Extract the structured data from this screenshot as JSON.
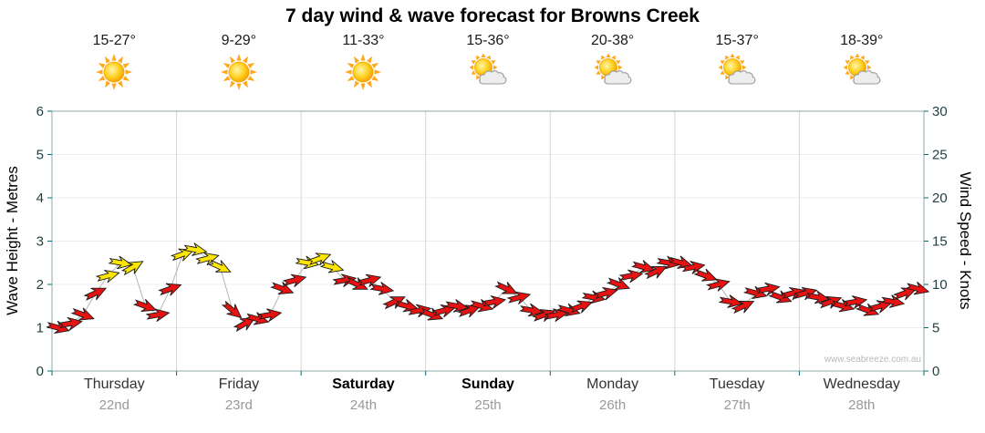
{
  "title": "7 day wind & wave forecast for Browns Creek",
  "watermark": "www.seabreeze.com.au",
  "days": [
    {
      "name": "Thursday",
      "date": "22nd",
      "temp": "15-27°",
      "icon": "sun",
      "weekend": false
    },
    {
      "name": "Friday",
      "date": "23rd",
      "temp": "9-29°",
      "icon": "sun",
      "weekend": false
    },
    {
      "name": "Saturday",
      "date": "24th",
      "temp": "11-33°",
      "icon": "sun",
      "weekend": true
    },
    {
      "name": "Sunday",
      "date": "25th",
      "temp": "15-36°",
      "icon": "sun-cloud",
      "weekend": true
    },
    {
      "name": "Monday",
      "date": "26th",
      "temp": "20-38°",
      "icon": "sun-cloud",
      "weekend": false
    },
    {
      "name": "Tuesday",
      "date": "27th",
      "temp": "15-37°",
      "icon": "sun-cloud",
      "weekend": false
    },
    {
      "name": "Wednesday",
      "date": "28th",
      "temp": "18-39°",
      "icon": "sun-cloud",
      "weekend": false
    }
  ],
  "colors": {
    "arrow_red": "#E81212",
    "arrow_yellow": "#FFE600",
    "arrow_outline": "#1c1c1c",
    "axis": "#8FA8A8",
    "grid_day": "#D6D6D6",
    "grid_metre": "#ECECEC",
    "tick": "#007070",
    "tick_label": "#1F3F3F",
    "trend_line": "#B4B4B4"
  },
  "chart_data": {
    "type": "scatter",
    "title": "7 day wind & wave forecast for Browns Creek",
    "x_categories": [
      "Thursday 22nd",
      "Friday 23rd",
      "Saturday 24th",
      "Sunday 25th",
      "Monday 26th",
      "Tuesday 27th",
      "Wednesday 28th"
    ],
    "y_left": {
      "label": "Wave Height - Metres",
      "min": 0,
      "max": 6,
      "step": 1
    },
    "y_right": {
      "label": "Wind Speed - Knots",
      "min": 0,
      "max": 30,
      "step": 5
    },
    "grid": "vertical day separators and faint horizontal metre lines",
    "legend": "arrow colour = wind strength (yellow = stronger ~12+ kts, red = lighter), arrow bearing = wind direction",
    "arrow_colors": {
      "r": "#E81212",
      "y": "#FFE600"
    },
    "point_format": [
      "x_day_fraction_0_to_7",
      "wind_speed_knots",
      "direction_deg",
      "color_code"
    ],
    "series": [
      {
        "name": "Wind speed (knots)",
        "points": [
          [
            0.05,
            5,
            15,
            "r"
          ],
          [
            0.15,
            5.5,
            -10,
            "r"
          ],
          [
            0.25,
            6.5,
            20,
            "r"
          ],
          [
            0.35,
            9,
            -25,
            "r"
          ],
          [
            0.45,
            11,
            -15,
            "y"
          ],
          [
            0.55,
            12.5,
            10,
            "y"
          ],
          [
            0.65,
            12,
            -30,
            "y"
          ],
          [
            0.75,
            7.5,
            20,
            "r"
          ],
          [
            0.85,
            6.5,
            -10,
            "r"
          ],
          [
            0.95,
            9.5,
            -20,
            "r"
          ],
          [
            1.05,
            13.5,
            -20,
            "y"
          ],
          [
            1.15,
            14,
            10,
            "y"
          ],
          [
            1.25,
            13,
            -15,
            "y"
          ],
          [
            1.35,
            12,
            25,
            "y"
          ],
          [
            1.45,
            7,
            40,
            "r"
          ],
          [
            1.55,
            5.5,
            -30,
            "r"
          ],
          [
            1.65,
            6,
            15,
            "r"
          ],
          [
            1.75,
            6.5,
            -10,
            "r"
          ],
          [
            1.85,
            9.5,
            20,
            "r"
          ],
          [
            1.95,
            10.5,
            -15,
            "r"
          ],
          [
            2.05,
            12.5,
            10,
            "y"
          ],
          [
            2.15,
            13,
            -20,
            "y"
          ],
          [
            2.25,
            12,
            15,
            "y"
          ],
          [
            2.35,
            10.5,
            -10,
            "r"
          ],
          [
            2.45,
            10,
            25,
            "r"
          ],
          [
            2.55,
            10.5,
            -15,
            "r"
          ],
          [
            2.65,
            9.5,
            10,
            "r"
          ],
          [
            2.75,
            8,
            -25,
            "r"
          ],
          [
            2.85,
            7.5,
            15,
            "r"
          ],
          [
            2.95,
            7,
            -10,
            "r"
          ],
          [
            3.05,
            6.5,
            20,
            "r"
          ],
          [
            3.15,
            7,
            -15,
            "r"
          ],
          [
            3.25,
            7.5,
            10,
            "r"
          ],
          [
            3.35,
            7,
            -20,
            "r"
          ],
          [
            3.45,
            7.5,
            15,
            "r"
          ],
          [
            3.55,
            8,
            -10,
            "r"
          ],
          [
            3.65,
            9.5,
            25,
            "r"
          ],
          [
            3.75,
            8.5,
            -15,
            "r"
          ],
          [
            3.85,
            7,
            10,
            "r"
          ],
          [
            3.95,
            6.5,
            -20,
            "r"
          ],
          [
            4.05,
            6.5,
            -10,
            "r"
          ],
          [
            4.15,
            7,
            15,
            "r"
          ],
          [
            4.25,
            7.5,
            -20,
            "r"
          ],
          [
            4.35,
            8.5,
            10,
            "r"
          ],
          [
            4.45,
            9,
            -15,
            "r"
          ],
          [
            4.55,
            10,
            20,
            "r"
          ],
          [
            4.65,
            11,
            -10,
            "r"
          ],
          [
            4.75,
            12,
            15,
            "r"
          ],
          [
            4.85,
            11.5,
            -25,
            "r"
          ],
          [
            4.95,
            12.5,
            10,
            "r"
          ],
          [
            5.05,
            12.5,
            15,
            "r"
          ],
          [
            5.15,
            12,
            -10,
            "r"
          ],
          [
            5.25,
            11,
            20,
            "r"
          ],
          [
            5.35,
            10,
            -15,
            "r"
          ],
          [
            5.45,
            8,
            10,
            "r"
          ],
          [
            5.55,
            7.5,
            -25,
            "r"
          ],
          [
            5.65,
            9,
            15,
            "r"
          ],
          [
            5.75,
            9.5,
            -10,
            "r"
          ],
          [
            5.85,
            8.5,
            20,
            "r"
          ],
          [
            5.95,
            9,
            -15,
            "r"
          ],
          [
            6.05,
            9,
            -15,
            "r"
          ],
          [
            6.15,
            8.5,
            10,
            "r"
          ],
          [
            6.25,
            8,
            -20,
            "r"
          ],
          [
            6.35,
            7.5,
            15,
            "r"
          ],
          [
            6.45,
            8,
            -10,
            "r"
          ],
          [
            6.55,
            7,
            20,
            "r"
          ],
          [
            6.65,
            7.5,
            -15,
            "r"
          ],
          [
            6.75,
            8,
            10,
            "r"
          ],
          [
            6.85,
            9,
            -20,
            "r"
          ],
          [
            6.95,
            9.5,
            15,
            "r"
          ]
        ]
      }
    ]
  }
}
